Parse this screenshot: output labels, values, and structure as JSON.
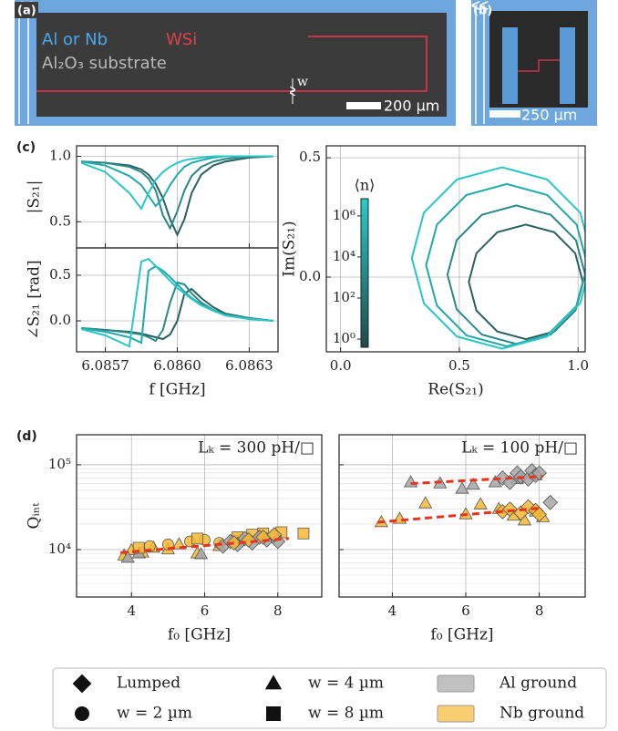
{
  "panel_a": {
    "label": "(a)",
    "legend": [
      "Al or Nb",
      "WSi",
      "Al₂O₃ substrate"
    ],
    "w_label": "w",
    "scale_bar": "200 µm"
  },
  "panel_b": {
    "label": "(b)",
    "scale_bar": "250 µm"
  },
  "chart_data": [
    {
      "type": "line",
      "panel_label": "(c)",
      "ylabel": "|S₂₁|",
      "x": [
        6.0856,
        6.0857,
        6.0858,
        6.08585,
        6.08588,
        6.08591,
        6.08594,
        6.08597,
        6.086,
        6.08603,
        6.08606,
        6.0861,
        6.08615,
        6.0862,
        6.0863,
        6.0864
      ],
      "xlim": [
        6.08558,
        6.08642
      ],
      "xticks": [
        6.0857,
        {
          "value": 6.086,
          "label": "6.0860"
        },
        6.0863
      ],
      "ylim": [
        0.3,
        1.08
      ],
      "yticks": [
        0.5,
        {
          "value": 1,
          "label": "1.0"
        }
      ],
      "grid": true,
      "series": [
        {
          "color": "#2b6060",
          "values": [
            0.96,
            0.95,
            0.93,
            0.9,
            0.86,
            0.79,
            0.68,
            0.52,
            0.4,
            0.52,
            0.72,
            0.86,
            0.93,
            0.96,
            0.99,
            1.0
          ]
        },
        {
          "color": "#2a8888",
          "values": [
            0.96,
            0.95,
            0.92,
            0.88,
            0.83,
            0.74,
            0.55,
            0.45,
            0.58,
            0.74,
            0.85,
            0.92,
            0.96,
            0.98,
            1.0,
            1.0
          ]
        },
        {
          "color": "#22a9a9",
          "values": [
            0.96,
            0.93,
            0.85,
            0.78,
            0.7,
            0.62,
            0.68,
            0.78,
            0.86,
            0.92,
            0.95,
            0.97,
            0.99,
            1.0,
            1.0,
            1.0
          ]
        },
        {
          "color": "#2ac6c6",
          "values": [
            0.95,
            0.88,
            0.72,
            0.6,
            0.72,
            0.82,
            0.88,
            0.92,
            0.95,
            0.97,
            0.98,
            0.99,
            1.0,
            1.0,
            1.0,
            1.0
          ]
        }
      ]
    },
    {
      "type": "line",
      "ylabel": "∠S₂₁ [rad]",
      "xlabel": "f [GHz]",
      "x": [
        6.0856,
        6.0857,
        6.0858,
        6.08585,
        6.08588,
        6.08591,
        6.08594,
        6.08597,
        6.086,
        6.08603,
        6.08606,
        6.0861,
        6.08615,
        6.0862,
        6.0863,
        6.0864
      ],
      "xlim": [
        6.08558,
        6.08642
      ],
      "xticks": [
        6.0857,
        {
          "value": 6.086,
          "label": "6.0860"
        },
        6.0863
      ],
      "ylim": [
        -0.34,
        0.8
      ],
      "yticks": [
        {
          "value": 0,
          "label": "0.0"
        },
        0.5
      ],
      "grid": true,
      "series": [
        {
          "color": "#2b6060",
          "values": [
            -0.08,
            -0.1,
            -0.12,
            -0.14,
            -0.16,
            -0.18,
            -0.2,
            -0.15,
            0.0,
            0.3,
            0.35,
            0.25,
            0.15,
            0.08,
            0.03,
            0.0
          ]
        },
        {
          "color": "#2a8888",
          "values": [
            -0.08,
            -0.1,
            -0.13,
            -0.15,
            -0.18,
            -0.22,
            -0.1,
            0.2,
            0.42,
            0.4,
            0.3,
            0.2,
            0.12,
            0.07,
            0.03,
            0.0
          ]
        },
        {
          "color": "#22a9a9",
          "values": [
            -0.08,
            -0.12,
            -0.18,
            -0.24,
            0.55,
            0.6,
            0.55,
            0.48,
            0.4,
            0.32,
            0.25,
            0.18,
            0.12,
            0.06,
            0.02,
            0.0
          ]
        },
        {
          "color": "#2ac6c6",
          "values": [
            -0.09,
            -0.16,
            -0.28,
            0.65,
            0.68,
            0.6,
            0.52,
            0.44,
            0.36,
            0.3,
            0.24,
            0.17,
            0.11,
            0.06,
            0.02,
            0.0
          ]
        }
      ]
    },
    {
      "type": "line",
      "closed": true,
      "xlabel": "Re(S₂₁)",
      "ylabel": "Im(S₂₁)",
      "xlim": [
        -0.06,
        1.03
      ],
      "xticks": [
        {
          "value": 0,
          "label": "0.0"
        },
        0.5,
        {
          "value": 1,
          "label": "1.0"
        }
      ],
      "ylim": [
        -0.313,
        0.55
      ],
      "yticks": [
        {
          "value": 0,
          "label": "0.0"
        },
        0.5
      ],
      "grid": true,
      "colorbar": {
        "label": "⟨n⟩",
        "log": true,
        "lim": [
          0.4,
          6900000
        ],
        "colors": [
          "#1f4a4a",
          "#28cccc"
        ],
        "ticks": [
          {
            "value": 1,
            "label": "10⁰"
          },
          {
            "value": 100,
            "label": "10²"
          },
          {
            "value": 10000,
            "label": "10⁴"
          },
          {
            "value": 1000000,
            "label": "10⁶"
          }
        ]
      },
      "series": [
        {
          "color": "#2b6060",
          "x": [
            1.02,
            0.988,
            0.9,
            0.78,
            0.66,
            0.572,
            0.54,
            0.572,
            0.66,
            0.78,
            0.9,
            0.988
          ],
          "values": [
            -0.02,
            0.1,
            0.188,
            0.22,
            0.188,
            0.1,
            -0.02,
            -0.14,
            -0.228,
            -0.26,
            -0.228,
            -0.14
          ]
        },
        {
          "color": "#2a8888",
          "x": [
            1.03,
            0.991,
            0.885,
            0.74,
            0.595,
            0.489,
            0.45,
            0.489,
            0.595,
            0.74,
            0.885,
            0.991
          ],
          "values": [
            0.01,
            0.155,
            0.261,
            0.3,
            0.261,
            0.155,
            0.01,
            -0.135,
            -0.241,
            -0.28,
            -0.241,
            -0.135
          ]
        },
        {
          "color": "#22a9a9",
          "x": [
            1.04,
            0.994,
            0.87,
            0.7,
            0.53,
            0.406,
            0.36,
            0.406,
            0.53,
            0.7,
            0.87,
            0.994
          ],
          "values": [
            0.05,
            0.22,
            0.344,
            0.39,
            0.344,
            0.22,
            0.05,
            -0.12,
            -0.244,
            -0.29,
            -0.244,
            -0.12
          ]
        },
        {
          "color": "#2ac6c6",
          "x": [
            1.06,
            1.009,
            0.87,
            0.68,
            0.49,
            0.351,
            0.3,
            0.351,
            0.49,
            0.68,
            0.87,
            1.009
          ],
          "values": [
            0.08,
            0.27,
            0.409,
            0.46,
            0.409,
            0.27,
            0.08,
            -0.11,
            -0.249,
            -0.3,
            -0.249,
            -0.11
          ]
        }
      ]
    },
    {
      "type": "scatter",
      "panel_label": "(d)",
      "title": "Lₖ = 300 pH/□",
      "ylabel": "Qᵢₙₜ",
      "xlabel": "f₀ [GHz]",
      "xlim": [
        2.5,
        9.2
      ],
      "xticks": [
        4,
        6,
        8
      ],
      "ylim": [
        2760,
        226000
      ],
      "ylog": true,
      "grid": true,
      "yticks": [
        {
          "value": 10000,
          "label": "10⁴"
        },
        {
          "value": 100000,
          "label": "10⁵"
        }
      ],
      "yminor": [
        3000,
        4000,
        5000,
        6000,
        7000,
        8000,
        9000,
        20000,
        30000,
        40000,
        50000,
        60000,
        70000,
        80000,
        90000,
        200000
      ],
      "series": [
        {
          "shape": "triangle",
          "color": "#f5b935",
          "x": [
            3.8,
            4.0,
            4.3,
            4.6,
            5.0,
            5.3,
            5.8,
            6.4
          ],
          "values": [
            8500,
            9800,
            9200,
            10500,
            10000,
            11500,
            9000,
            11000
          ]
        },
        {
          "shape": "triangle",
          "color": "#a6a6a6",
          "x": [
            3.9,
            4.2,
            5.9
          ],
          "values": [
            8000,
            9000,
            8800
          ]
        },
        {
          "shape": "circle",
          "color": "#f5b935",
          "x": [
            4.5,
            5.0,
            5.6,
            6.0,
            6.4,
            6.8,
            7.0
          ],
          "values": [
            11000,
            11500,
            12500,
            13000,
            12000,
            12800,
            13000
          ]
        },
        {
          "shape": "square",
          "color": "#f5b935",
          "x": [
            4.2,
            5.8,
            6.9,
            7.3,
            7.6,
            8.1,
            8.7
          ],
          "values": [
            10500,
            13500,
            14000,
            15000,
            15500,
            16000,
            15500
          ]
        },
        {
          "shape": "diamond",
          "color": "#a6a6a6",
          "x": [
            6.5,
            6.7,
            6.9,
            7.1,
            7.3,
            7.5,
            7.7,
            7.9,
            8.0
          ],
          "values": [
            11000,
            12500,
            11500,
            13500,
            12000,
            14000,
            13000,
            14500,
            12500
          ]
        },
        {
          "shape": "diamond",
          "color": "#f5b935",
          "x": [
            6.8,
            7.2,
            7.6,
            7.9
          ],
          "values": [
            12000,
            13000,
            14000,
            15000
          ]
        }
      ],
      "fits": [
        {
          "color": "#e8321e",
          "x": [
            3.7,
            8.3
          ],
          "values": [
            9200,
            13500
          ]
        }
      ]
    },
    {
      "type": "scatter",
      "title": "Lₖ = 100 pH/□",
      "xlabel": "f₀ [GHz]",
      "xlim": [
        2.55,
        9.25
      ],
      "xticks": [
        4,
        6,
        8
      ],
      "ylim": [
        2760,
        226000
      ],
      "ylog": true,
      "grid": true,
      "yticks": [
        10000,
        100000
      ],
      "yminor": [
        3000,
        4000,
        5000,
        6000,
        7000,
        8000,
        9000,
        20000,
        30000,
        40000,
        50000,
        60000,
        70000,
        80000,
        90000,
        200000
      ],
      "series": [
        {
          "shape": "triangle",
          "color": "#a6a6a6",
          "x": [
            4.5,
            5.3,
            5.9,
            6.2,
            6.8,
            7.4,
            7.9
          ],
          "values": [
            62000,
            60000,
            52000,
            58000,
            62000,
            68000,
            75000
          ]
        },
        {
          "shape": "diamond",
          "color": "#a6a6a6",
          "x": [
            7.0,
            7.2,
            7.4,
            7.5,
            7.7,
            7.8,
            7.9,
            8.0,
            8.3
          ],
          "values": [
            70000,
            62000,
            80000,
            72000,
            68000,
            85000,
            75000,
            80000,
            36000
          ]
        },
        {
          "shape": "triangle",
          "color": "#f5b935",
          "x": [
            3.7,
            4.2,
            4.9,
            6.0,
            6.4,
            6.9,
            7.3,
            7.6,
            7.9,
            8.1
          ],
          "values": [
            21000,
            23000,
            35000,
            26000,
            34000,
            30000,
            25000,
            22000,
            28000,
            24000
          ]
        },
        {
          "shape": "diamond",
          "color": "#f5b935",
          "x": [
            7.0,
            7.2,
            7.5,
            7.7,
            7.9,
            8.0
          ],
          "values": [
            28000,
            30000,
            27000,
            32000,
            29000,
            26000
          ]
        }
      ],
      "fits": [
        {
          "color": "#e8321e",
          "x": [
            4.5,
            8.1
          ],
          "values": [
            60000,
            73000
          ]
        },
        {
          "color": "#e8321e",
          "x": [
            3.6,
            8.1
          ],
          "values": [
            21000,
            31000
          ]
        }
      ]
    }
  ],
  "legend": {
    "markers": [
      {
        "label": "Lumped",
        "shape": "diamond"
      },
      {
        "label": "w = 2 µm",
        "shape": "circle"
      },
      {
        "label": "w = 4 µm",
        "shape": "triangle"
      },
      {
        "label": "w = 8 µm",
        "shape": "square"
      }
    ],
    "grounds": [
      {
        "label": "Al ground",
        "color": "#a6a6a6"
      },
      {
        "label": "Nb ground",
        "color": "#f5b935"
      }
    ]
  }
}
